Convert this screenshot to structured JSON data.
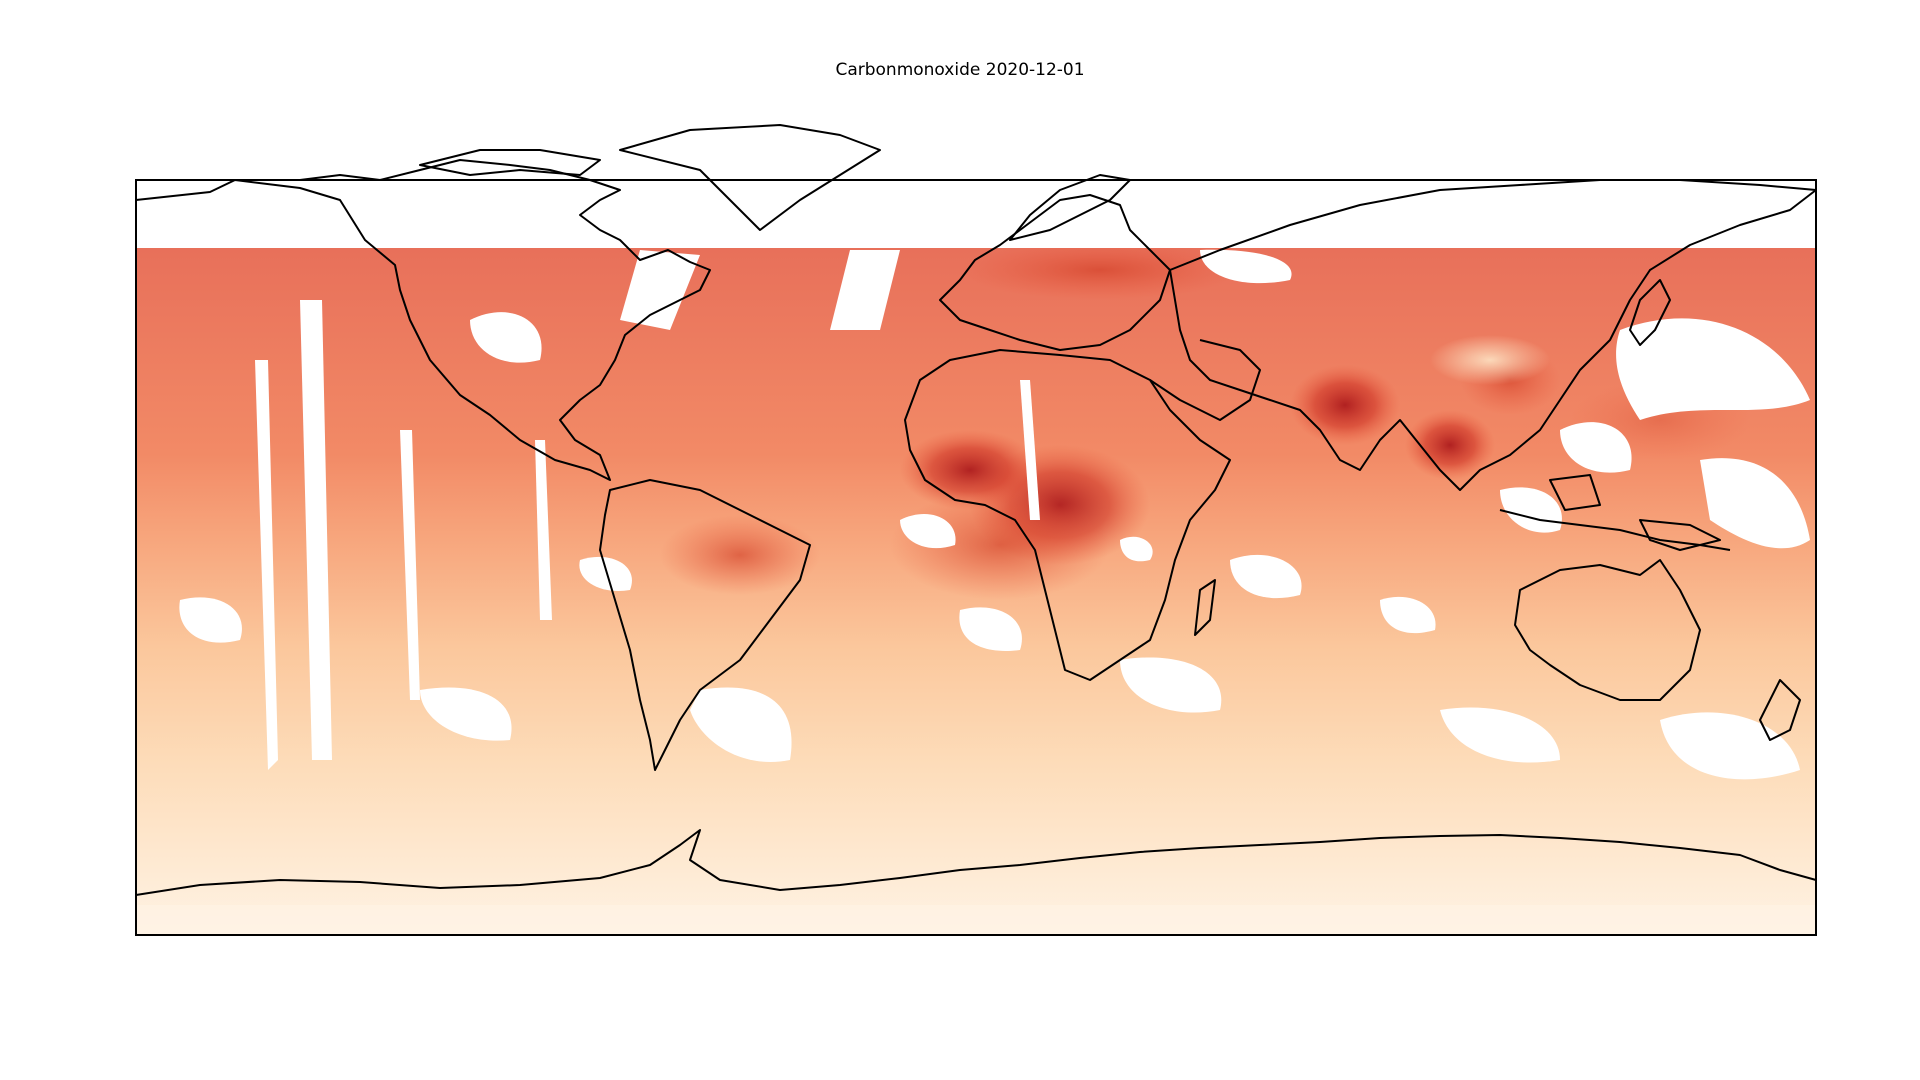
{
  "title": "Carbonmonoxide 2020-12-01",
  "colormap": {
    "name": "OrRd",
    "stops": [
      "#fff7ec",
      "#fee8c8",
      "#fdd49e",
      "#fdbb84",
      "#fc8d59",
      "#ef6548",
      "#d7301f",
      "#b30000",
      "#7f0000"
    ]
  },
  "frame_color": "#000000",
  "coastline_color": "#000000",
  "no_data_color": "#ffffff"
}
